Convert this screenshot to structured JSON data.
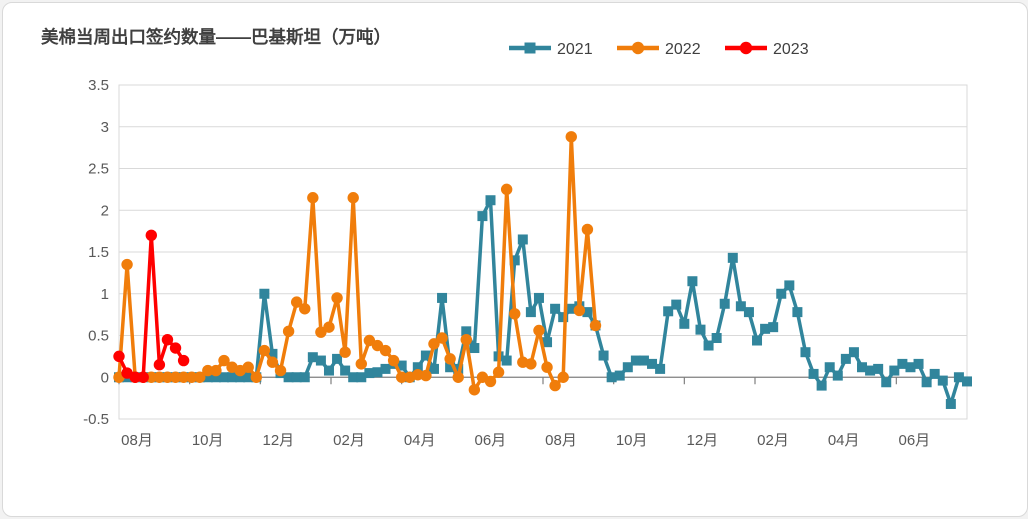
{
  "chart_data": {
    "type": "line",
    "title": "美棉当周出口签约数量——巴基斯坦（万吨）",
    "unit": "万吨",
    "x_unit": "week (weekly export sales points, marketing year starting 08月)",
    "x_axis": {
      "tick_labels": [
        "08月",
        "10月",
        "12月",
        "02月",
        "04月",
        "06月",
        "08月",
        "10月",
        "12月",
        "02月",
        "04月",
        "06月"
      ],
      "months_spanned": 24,
      "weeks_spanned": 105
    },
    "y_axis": {
      "min": -0.5,
      "max": 3.5,
      "step": 0.5,
      "tick_labels": [
        "3.5",
        "3",
        "2.5",
        "2",
        "1.5",
        "1",
        "0.5",
        "0",
        "-0.5"
      ]
    },
    "grid": "horizontal",
    "legend_position": "top-right",
    "colors": {
      "grid": "#D9D9D9",
      "axis": "#7F7F7F",
      "axis_text": "#595959",
      "title_text": "#404040",
      "legend_text": "#404040",
      "background": "#FFFFFF",
      "border": "#D9D9D9"
    },
    "series": [
      {
        "name": "2021",
        "color": "#31859C",
        "marker": "square",
        "start_week": 0,
        "values": [
          0,
          0,
          0,
          0,
          0,
          0,
          0,
          0,
          0,
          0,
          0,
          0,
          0,
          0,
          0,
          0,
          0,
          0,
          1.0,
          0.28,
          0.05,
          0,
          0,
          0,
          0.24,
          0.2,
          0.08,
          0.22,
          0.08,
          0,
          0,
          0.05,
          0.06,
          0.1,
          0.16,
          0.14,
          0,
          0.12,
          0.26,
          0.1,
          0.95,
          0.12,
          0.1,
          0.55,
          0.35,
          1.93,
          2.12,
          0.25,
          0.2,
          1.4,
          1.65,
          0.78,
          0.95,
          0.42,
          0.82,
          0.72,
          0.82,
          0.85,
          0.78,
          0.62,
          0.26,
          0,
          0.02,
          0.12,
          0.2,
          0.2,
          0.16,
          0.1,
          0.79,
          0.87,
          0.64,
          1.15,
          0.57,
          0.38,
          0.47,
          0.88,
          1.43,
          0.85,
          0.78,
          0.44,
          0.58,
          0.6,
          1.0,
          1.1,
          0.78,
          0.3,
          0.04,
          -0.1,
          0.12,
          0.02,
          0.22,
          0.3,
          0.12,
          0.08,
          0.1,
          -0.06,
          0.08,
          0.16,
          0.12,
          0.16,
          -0.06,
          0.04,
          -0.04,
          -0.32,
          0,
          -0.05
        ]
      },
      {
        "name": "2022",
        "color": "#F07D0B",
        "marker": "circle",
        "start_week": 0,
        "values": [
          0,
          1.35,
          0,
          0,
          0,
          0,
          0,
          0,
          0,
          0,
          0,
          0.08,
          0.08,
          0.2,
          0.12,
          0.08,
          0.12,
          0,
          0.32,
          0.18,
          0.08,
          0.55,
          0.9,
          0.82,
          2.15,
          0.54,
          0.6,
          0.95,
          0.3,
          2.15,
          0.16,
          0.44,
          0.38,
          0.32,
          0.2,
          0,
          0,
          0.03,
          0.02,
          0.4,
          0.47,
          0.22,
          0,
          0.45,
          -0.15,
          0,
          -0.05,
          0.06,
          2.25,
          0.76,
          0.18,
          0.16,
          0.56,
          0.12,
          -0.1,
          0,
          2.88,
          0.8,
          1.77,
          0.62
        ]
      },
      {
        "name": "2023",
        "color": "#FF0000",
        "marker": "circle",
        "start_week": 0,
        "values": [
          0.25,
          0.05,
          0,
          0,
          1.7,
          0.15,
          0.45,
          0.35,
          0.2
        ]
      }
    ]
  }
}
